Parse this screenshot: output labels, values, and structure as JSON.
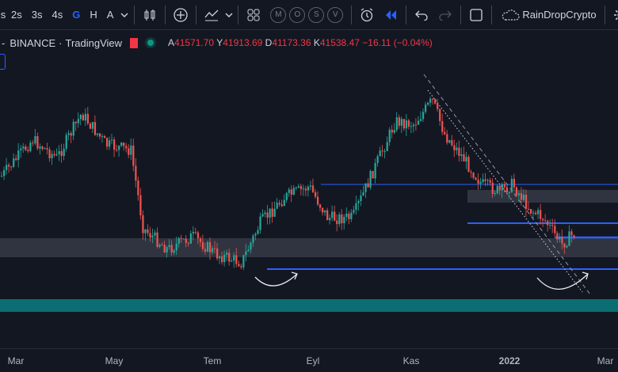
{
  "toolbar": {
    "partial_left": "s",
    "intervals": [
      "2s",
      "3s",
      "4s",
      "G",
      "H",
      "A"
    ],
    "active_interval": "G",
    "ohlc_letters": [
      "M",
      "O",
      "S",
      "V"
    ],
    "cloud_label": "RainDropCrypto",
    "icons": [
      "chevron-down-icon",
      "candles-icon",
      "plus-circle-icon",
      "indicators-icon",
      "templates-icon",
      "alert-icon",
      "replay-icon",
      "undo-icon",
      "redo-icon",
      "layout-icon",
      "cloud-icon",
      "gear-icon"
    ]
  },
  "legend": {
    "symbol_prefix": "-",
    "exchange": "BINANCE",
    "source": "TradingView",
    "o_label": "A",
    "o_val": "41571.70",
    "h_label": "Y",
    "h_val": "41913.69",
    "l_label": "D",
    "l_val": "41173.36",
    "c_label": "K",
    "c_val": "41538.47",
    "change": "−16.11 (−0.04%)"
  },
  "colors": {
    "up": "#26a69a",
    "down": "#ef5350",
    "level_line": "#2962ff",
    "teal_zone": "#0b6e72",
    "gray_zone": "#363a45"
  },
  "xaxis": {
    "labels": [
      "Mar",
      "May",
      "Tem",
      "Eyl",
      "Kas",
      "2022",
      "Mar"
    ]
  },
  "chart_data": {
    "type": "candlestick",
    "x_range": [
      "2021-03",
      "2022-03"
    ],
    "y_range_shown": "unlabeled",
    "note_levels": "horizontal support/resistance lines and zones, descending trend channel, two curved arrows",
    "series": [
      {
        "name": "price",
        "path_points": [
          [
            0,
            0.42
          ],
          [
            0.05,
            0.28
          ],
          [
            0.09,
            0.35
          ],
          [
            0.13,
            0.18
          ],
          [
            0.17,
            0.3
          ],
          [
            0.21,
            0.32
          ],
          [
            0.23,
            0.62
          ],
          [
            0.27,
            0.7
          ],
          [
            0.31,
            0.65
          ],
          [
            0.35,
            0.72
          ],
          [
            0.39,
            0.75
          ],
          [
            0.42,
            0.6
          ],
          [
            0.46,
            0.5
          ],
          [
            0.5,
            0.46
          ],
          [
            0.53,
            0.58
          ],
          [
            0.57,
            0.58
          ],
          [
            0.6,
            0.42
          ],
          [
            0.64,
            0.21
          ],
          [
            0.67,
            0.22
          ],
          [
            0.7,
            0.13
          ],
          [
            0.72,
            0.26
          ],
          [
            0.75,
            0.35
          ],
          [
            0.78,
            0.45
          ],
          [
            0.81,
            0.48
          ],
          [
            0.83,
            0.45
          ],
          [
            0.86,
            0.55
          ],
          [
            0.88,
            0.58
          ],
          [
            0.91,
            0.68
          ],
          [
            0.93,
            0.64
          ]
        ]
      }
    ]
  }
}
